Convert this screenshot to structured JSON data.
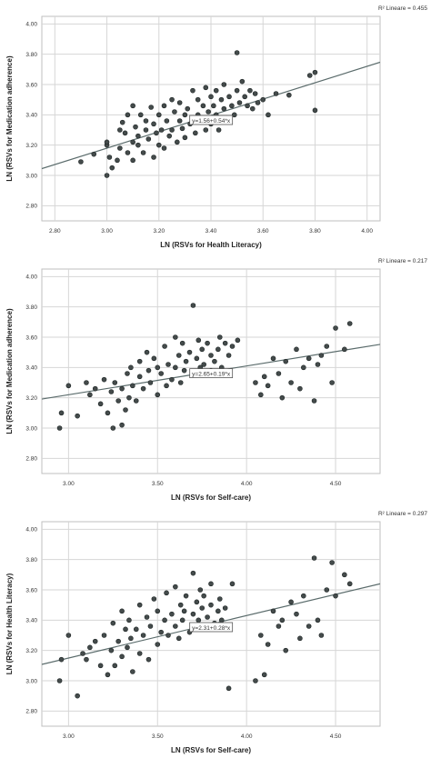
{
  "chart_data": [
    {
      "type": "scatter",
      "r2_label": "R² Lineare = 0.455",
      "equation": "y=1.56+0.54*x",
      "xlabel": "LN (RSVs for Health Literacy)",
      "ylabel": "LN (RSVs for Medication adherence)",
      "xlim": [
        2.75,
        4.05
      ],
      "ylim": [
        2.7,
        4.05
      ],
      "xticks": [
        "2.80",
        "3.00",
        "3.20",
        "3.40",
        "3.60",
        "3.80",
        "4.00"
      ],
      "yticks": [
        "2.80",
        "3.00",
        "3.20",
        "3.40",
        "3.60",
        "3.80",
        "4.00"
      ],
      "fit": {
        "intercept": 1.56,
        "slope": 0.54
      },
      "x": [
        2.9,
        2.95,
        3.0,
        3.0,
        3.0,
        3.01,
        3.02,
        3.04,
        3.05,
        3.05,
        3.06,
        3.07,
        3.08,
        3.08,
        3.1,
        3.1,
        3.1,
        3.11,
        3.12,
        3.12,
        3.13,
        3.14,
        3.15,
        3.15,
        3.16,
        3.17,
        3.18,
        3.18,
        3.19,
        3.2,
        3.2,
        3.21,
        3.22,
        3.22,
        3.23,
        3.24,
        3.25,
        3.25,
        3.26,
        3.27,
        3.28,
        3.28,
        3.29,
        3.3,
        3.3,
        3.31,
        3.32,
        3.33,
        3.34,
        3.35,
        3.35,
        3.36,
        3.37,
        3.38,
        3.38,
        3.39,
        3.4,
        3.4,
        3.41,
        3.42,
        3.42,
        3.43,
        3.44,
        3.45,
        3.45,
        3.46,
        3.47,
        3.48,
        3.49,
        3.5,
        3.5,
        3.51,
        3.52,
        3.53,
        3.54,
        3.55,
        3.56,
        3.57,
        3.58,
        3.6,
        3.62,
        3.65,
        3.7,
        3.78,
        3.8,
        3.8
      ],
      "y": [
        3.09,
        3.14,
        3.0,
        3.2,
        3.22,
        3.12,
        3.05,
        3.1,
        3.3,
        3.18,
        3.35,
        3.28,
        3.15,
        3.4,
        3.22,
        3.46,
        3.1,
        3.32,
        3.2,
        3.26,
        3.4,
        3.15,
        3.3,
        3.36,
        3.24,
        3.45,
        3.12,
        3.34,
        3.28,
        3.2,
        3.4,
        3.3,
        3.18,
        3.46,
        3.36,
        3.26,
        3.5,
        3.3,
        3.42,
        3.22,
        3.36,
        3.48,
        3.31,
        3.25,
        3.4,
        3.44,
        3.34,
        3.56,
        3.28,
        3.4,
        3.5,
        3.36,
        3.46,
        3.3,
        3.58,
        3.42,
        3.34,
        3.52,
        3.46,
        3.4,
        3.56,
        3.3,
        3.5,
        3.44,
        3.6,
        3.38,
        3.52,
        3.46,
        3.4,
        3.81,
        3.56,
        3.48,
        3.62,
        3.52,
        3.46,
        3.56,
        3.44,
        3.54,
        3.48,
        3.5,
        3.4,
        3.54,
        3.53,
        3.66,
        3.68,
        3.43
      ]
    },
    {
      "type": "scatter",
      "r2_label": "R² Lineare = 0.217",
      "equation": "y=2.65+0.19*x",
      "xlabel": "LN (RSVs for Self-care)",
      "ylabel": "LN (RSVs for Medication adherence)",
      "xlim": [
        2.85,
        4.75
      ],
      "ylim": [
        2.7,
        4.05
      ],
      "xticks": [
        "3.00",
        "3.50",
        "4.00",
        "4.50"
      ],
      "yticks": [
        "2.80",
        "3.00",
        "3.20",
        "3.40",
        "3.60",
        "3.80",
        "4.00"
      ],
      "fit": {
        "intercept": 2.65,
        "slope": 0.19
      },
      "x": [
        2.95,
        2.96,
        3.0,
        3.05,
        3.1,
        3.12,
        3.15,
        3.18,
        3.2,
        3.22,
        3.24,
        3.25,
        3.26,
        3.28,
        3.3,
        3.3,
        3.32,
        3.33,
        3.34,
        3.35,
        3.36,
        3.38,
        3.4,
        3.4,
        3.42,
        3.44,
        3.45,
        3.46,
        3.48,
        3.5,
        3.5,
        3.52,
        3.54,
        3.55,
        3.56,
        3.58,
        3.6,
        3.6,
        3.62,
        3.63,
        3.64,
        3.65,
        3.66,
        3.68,
        3.7,
        3.7,
        3.72,
        3.73,
        3.74,
        3.75,
        3.76,
        3.78,
        3.8,
        3.8,
        3.82,
        3.84,
        3.85,
        3.86,
        3.88,
        3.9,
        3.92,
        3.95,
        4.05,
        4.08,
        4.1,
        4.12,
        4.15,
        4.18,
        4.2,
        4.22,
        4.25,
        4.28,
        4.3,
        4.32,
        4.35,
        4.38,
        4.4,
        4.42,
        4.45,
        4.48,
        4.5,
        4.55,
        4.58
      ],
      "y": [
        3.0,
        3.1,
        3.28,
        3.08,
        3.3,
        3.22,
        3.26,
        3.16,
        3.32,
        3.1,
        3.24,
        3.0,
        3.3,
        3.18,
        3.02,
        3.26,
        3.12,
        3.36,
        3.2,
        3.4,
        3.28,
        3.18,
        3.44,
        3.34,
        3.26,
        3.5,
        3.38,
        3.3,
        3.46,
        3.22,
        3.4,
        3.36,
        3.54,
        3.28,
        3.42,
        3.32,
        3.6,
        3.4,
        3.48,
        3.3,
        3.56,
        3.38,
        3.44,
        3.5,
        3.81,
        3.36,
        3.46,
        3.58,
        3.4,
        3.52,
        3.42,
        3.56,
        3.38,
        3.48,
        3.44,
        3.52,
        3.6,
        3.4,
        3.56,
        3.48,
        3.54,
        3.58,
        3.3,
        3.22,
        3.34,
        3.28,
        3.46,
        3.36,
        3.2,
        3.44,
        3.3,
        3.52,
        3.26,
        3.4,
        3.46,
        3.18,
        3.42,
        3.48,
        3.54,
        3.3,
        3.66,
        3.52,
        3.69
      ]
    },
    {
      "type": "scatter",
      "r2_label": "R² Lineare = 0.297",
      "equation": "y=2.31+0.28*x",
      "xlabel": "LN (RSVs for Self-care)",
      "ylabel": "LN (RSVs for Health Literacy)",
      "xlim": [
        2.85,
        4.75
      ],
      "ylim": [
        2.7,
        4.05
      ],
      "xticks": [
        "3.00",
        "3.50",
        "4.00",
        "4.50"
      ],
      "yticks": [
        "2.80",
        "3.00",
        "3.20",
        "3.40",
        "3.60",
        "3.80",
        "4.00"
      ],
      "fit": {
        "intercept": 2.31,
        "slope": 0.28
      },
      "x": [
        2.95,
        2.96,
        3.0,
        3.05,
        3.08,
        3.1,
        3.12,
        3.15,
        3.18,
        3.2,
        3.22,
        3.24,
        3.25,
        3.26,
        3.28,
        3.3,
        3.3,
        3.32,
        3.33,
        3.34,
        3.35,
        3.36,
        3.38,
        3.4,
        3.4,
        3.42,
        3.44,
        3.45,
        3.46,
        3.48,
        3.5,
        3.5,
        3.52,
        3.54,
        3.55,
        3.56,
        3.58,
        3.6,
        3.6,
        3.62,
        3.63,
        3.64,
        3.65,
        3.66,
        3.68,
        3.7,
        3.7,
        3.72,
        3.73,
        3.74,
        3.75,
        3.76,
        3.78,
        3.8,
        3.8,
        3.82,
        3.84,
        3.85,
        3.86,
        3.88,
        3.9,
        4.05,
        4.08,
        4.1,
        4.12,
        4.15,
        4.18,
        4.2,
        4.22,
        4.25,
        4.28,
        4.3,
        4.32,
        4.35,
        4.38,
        4.4,
        4.42,
        4.45,
        4.48,
        4.5,
        4.55,
        4.58,
        3.92
      ],
      "y": [
        3.0,
        3.14,
        3.3,
        2.9,
        3.18,
        3.14,
        3.22,
        3.26,
        3.1,
        3.3,
        3.04,
        3.2,
        3.38,
        3.1,
        3.26,
        3.46,
        3.16,
        3.34,
        3.22,
        3.4,
        3.28,
        3.06,
        3.34,
        3.18,
        3.5,
        3.3,
        3.42,
        3.14,
        3.36,
        3.54,
        3.24,
        3.46,
        3.32,
        3.4,
        3.58,
        3.3,
        3.44,
        3.36,
        3.62,
        3.28,
        3.5,
        3.4,
        3.46,
        3.56,
        3.32,
        3.71,
        3.44,
        3.52,
        3.4,
        3.6,
        3.48,
        3.56,
        3.42,
        3.64,
        3.5,
        3.38,
        3.46,
        3.54,
        3.4,
        3.48,
        2.95,
        3.0,
        3.3,
        3.04,
        3.24,
        3.46,
        3.36,
        3.4,
        3.2,
        3.52,
        3.44,
        3.28,
        3.56,
        3.36,
        3.81,
        3.4,
        3.3,
        3.6,
        3.78,
        3.56,
        3.7,
        3.64,
        3.64
      ]
    }
  ]
}
